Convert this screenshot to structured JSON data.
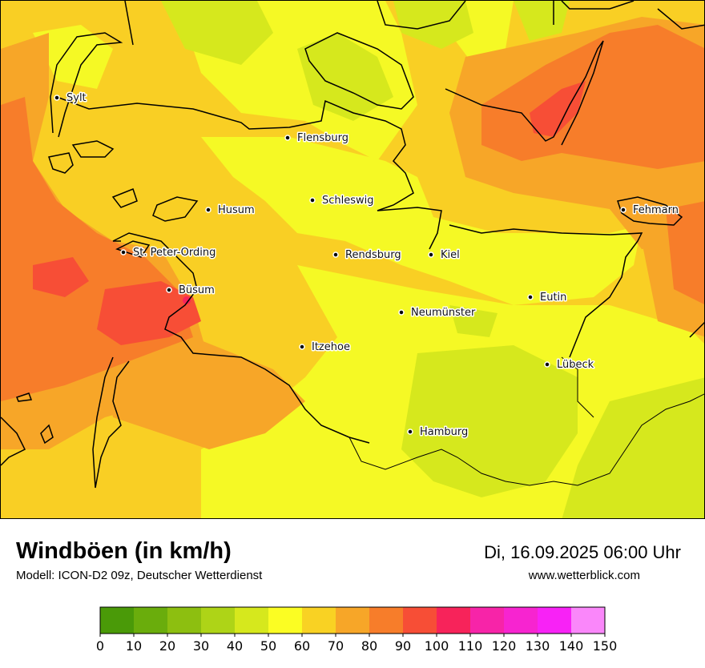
{
  "header": {
    "title": "Windböen (in km/h)",
    "model": "Modell: ICON-D2 09z, Deutscher Wetterdienst",
    "datetime": "Di, 16.09.2025 06:00 Uhr",
    "website": "www.wetterblick.com"
  },
  "cities": [
    {
      "name": "Sylt"
    },
    {
      "name": "Flensburg"
    },
    {
      "name": "Schleswig"
    },
    {
      "name": "Husum"
    },
    {
      "name": "Fehmarn"
    },
    {
      "name": "St. Peter-Ording"
    },
    {
      "name": "Rendsburg"
    },
    {
      "name": "Kiel"
    },
    {
      "name": "Büsum"
    },
    {
      "name": "Eutin"
    },
    {
      "name": "Neumünster"
    },
    {
      "name": "Itzehoe"
    },
    {
      "name": "Lübeck"
    },
    {
      "name": "Hamburg"
    }
  ],
  "legend": {
    "ticks": [
      "0",
      "10",
      "20",
      "30",
      "40",
      "50",
      "60",
      "70",
      "80",
      "90",
      "100",
      "110",
      "120",
      "130",
      "140",
      "150"
    ],
    "colors": [
      "#4a9a08",
      "#6aad0c",
      "#8dbf10",
      "#aed417",
      "#d6e81d",
      "#fbfd23",
      "#f9d223",
      "#f7a628",
      "#f77d2a",
      "#f74e36",
      "#f7235a",
      "#f724a8",
      "#f724d0",
      "#f822f6",
      "#fa87fa"
    ]
  },
  "map_colors": {
    "base": "#f9cf24",
    "yellow": "#f5f925",
    "light_green": "#d6e81d",
    "orange": "#f7a628",
    "dark_orange": "#f77d2a",
    "red": "#f74e36",
    "coastline": "#000000"
  }
}
